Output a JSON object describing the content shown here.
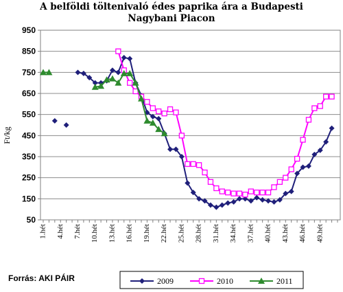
{
  "chart_data": {
    "type": "line",
    "title_line1": "A belföldi töltenivaló édes paprika ára a Budapesti",
    "title_line2": "Nagybani Piacon",
    "ylabel": "Ft/kg",
    "ylim": [
      50,
      950
    ],
    "yticks": [
      50,
      150,
      250,
      350,
      450,
      550,
      650,
      750,
      850,
      950
    ],
    "xtick_labels": [
      "1.hét",
      "4.hét",
      "7.hét",
      "10.hét",
      "13.hét",
      "16.hét",
      "19.hét",
      "22.hét",
      "25.hét",
      "28.hét",
      "31.hét",
      "34.hét",
      "37.hét",
      "40.hét",
      "43.hét",
      "46.hét",
      "49.hét"
    ],
    "xtick_weeks": [
      1,
      4,
      7,
      10,
      13,
      16,
      19,
      22,
      25,
      28,
      31,
      34,
      37,
      40,
      43,
      46,
      49
    ],
    "week_range": [
      1,
      52
    ],
    "grid": "horizontal",
    "legend_position": "bottom",
    "series": [
      {
        "name": "2009",
        "color": "#1f1f7a",
        "marker": "diamond",
        "points": [
          [
            3,
            520
          ],
          [
            5,
            500
          ],
          [
            7,
            750
          ],
          [
            8,
            745
          ],
          [
            9,
            725
          ],
          [
            10,
            700
          ],
          [
            11,
            700
          ],
          [
            12,
            710
          ],
          [
            13,
            760
          ],
          [
            14,
            750
          ],
          [
            15,
            820
          ],
          [
            16,
            815
          ],
          [
            17,
            700
          ],
          [
            18,
            640
          ],
          [
            19,
            560
          ],
          [
            20,
            540
          ],
          [
            21,
            530
          ],
          [
            22,
            460
          ],
          [
            23,
            385
          ],
          [
            24,
            385
          ],
          [
            25,
            350
          ],
          [
            26,
            225
          ],
          [
            27,
            180
          ],
          [
            28,
            150
          ],
          [
            29,
            140
          ],
          [
            30,
            120
          ],
          [
            31,
            110
          ],
          [
            32,
            120
          ],
          [
            33,
            130
          ],
          [
            34,
            135
          ],
          [
            35,
            150
          ],
          [
            36,
            150
          ],
          [
            37,
            140
          ],
          [
            38,
            155
          ],
          [
            39,
            145
          ],
          [
            40,
            140
          ],
          [
            41,
            135
          ],
          [
            42,
            145
          ],
          [
            43,
            175
          ],
          [
            44,
            185
          ],
          [
            45,
            270
          ],
          [
            46,
            300
          ],
          [
            47,
            305
          ],
          [
            48,
            360
          ],
          [
            49,
            380
          ],
          [
            50,
            420
          ],
          [
            51,
            485
          ]
        ]
      },
      {
        "name": "2010",
        "color": "#ff00ff",
        "marker": "square",
        "points": [
          [
            14,
            850
          ],
          [
            15,
            760
          ],
          [
            16,
            700
          ],
          [
            17,
            660
          ],
          [
            18,
            635
          ],
          [
            19,
            610
          ],
          [
            20,
            580
          ],
          [
            21,
            565
          ],
          [
            22,
            555
          ],
          [
            23,
            575
          ],
          [
            24,
            560
          ],
          [
            25,
            450
          ],
          [
            26,
            315
          ],
          [
            27,
            315
          ],
          [
            28,
            310
          ],
          [
            29,
            275
          ],
          [
            30,
            230
          ],
          [
            31,
            200
          ],
          [
            32,
            185
          ],
          [
            33,
            180
          ],
          [
            34,
            175
          ],
          [
            35,
            175
          ],
          [
            36,
            170
          ],
          [
            37,
            185
          ],
          [
            38,
            180
          ],
          [
            39,
            180
          ],
          [
            40,
            180
          ],
          [
            41,
            205
          ],
          [
            42,
            230
          ],
          [
            43,
            250
          ],
          [
            44,
            290
          ],
          [
            45,
            340
          ],
          [
            46,
            430
          ],
          [
            47,
            525
          ],
          [
            48,
            580
          ],
          [
            49,
            590
          ],
          [
            50,
            635
          ],
          [
            51,
            635
          ]
        ]
      },
      {
        "name": "2011",
        "color": "#2e8b2e",
        "marker": "triangle",
        "points": [
          [
            1,
            750
          ],
          [
            2,
            750
          ],
          [
            10,
            680
          ],
          [
            11,
            685
          ],
          [
            12,
            715
          ],
          [
            13,
            720
          ],
          [
            14,
            700
          ],
          [
            15,
            745
          ],
          [
            16,
            745
          ],
          [
            17,
            700
          ],
          [
            18,
            625
          ],
          [
            19,
            520
          ],
          [
            20,
            510
          ],
          [
            21,
            480
          ],
          [
            22,
            460
          ]
        ]
      }
    ],
    "source": "Forrás: AKI PÁIR"
  }
}
